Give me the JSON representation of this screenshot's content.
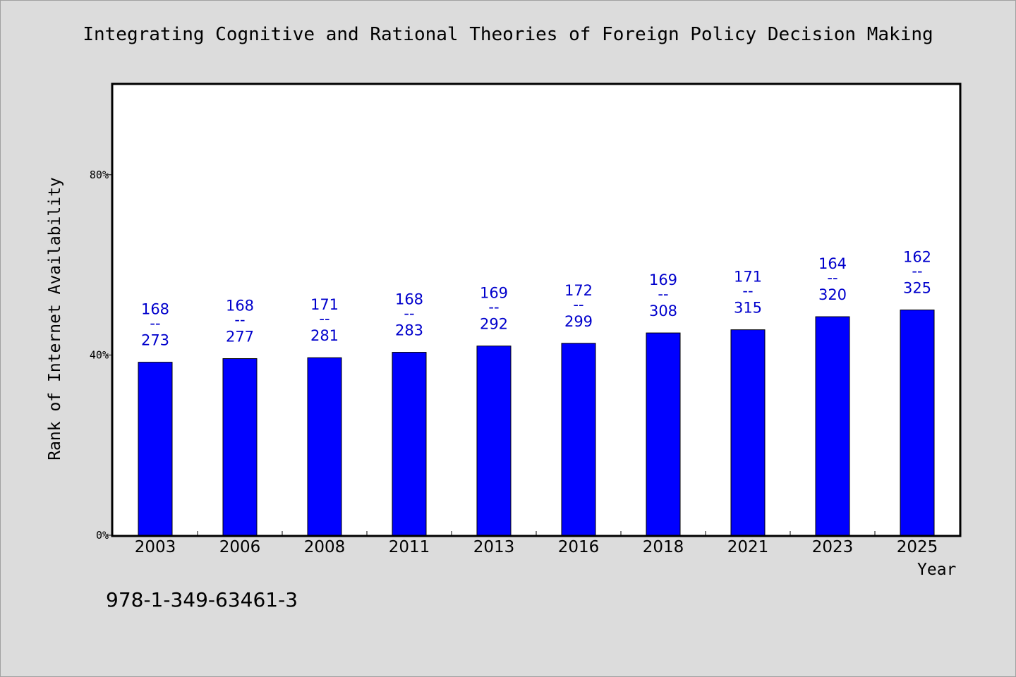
{
  "chart_data": {
    "type": "bar",
    "title": "Integrating Cognitive and Rational Theories of Foreign Policy Decision Making",
    "xlabel": "Year",
    "ylabel": "Rank of Internet Availability",
    "categories": [
      "2003",
      "2006",
      "2008",
      "2011",
      "2013",
      "2016",
      "2018",
      "2021",
      "2023",
      "2025"
    ],
    "values": [
      38.4,
      39.2,
      39.4,
      40.6,
      42.0,
      42.6,
      44.9,
      45.6,
      48.5,
      50.0
    ],
    "value_unit": "%",
    "data_labels": [
      {
        "top": "168",
        "sep": "--",
        "bottom": "273"
      },
      {
        "top": "168",
        "sep": "--",
        "bottom": "277"
      },
      {
        "top": "171",
        "sep": "--",
        "bottom": "281"
      },
      {
        "top": "168",
        "sep": "--",
        "bottom": "283"
      },
      {
        "top": "169",
        "sep": "--",
        "bottom": "292"
      },
      {
        "top": "172",
        "sep": "--",
        "bottom": "299"
      },
      {
        "top": "169",
        "sep": "--",
        "bottom": "308"
      },
      {
        "top": "171",
        "sep": "--",
        "bottom": "315"
      },
      {
        "top": "164",
        "sep": "--",
        "bottom": "320"
      },
      {
        "top": "162",
        "sep": "--",
        "bottom": "325"
      }
    ],
    "yticks": [
      {
        "value": 0,
        "label": "0%"
      },
      {
        "value": 40,
        "label": "40%"
      },
      {
        "value": 80,
        "label": "80%"
      }
    ],
    "ylim": [
      0,
      100
    ],
    "grid": false,
    "colors": {
      "bar": "#0000ff",
      "label": "#0000cc",
      "background": "#dcdcdc",
      "plot": "#ffffff"
    }
  },
  "footer": {
    "isbn": "978-1-349-63461-3"
  }
}
